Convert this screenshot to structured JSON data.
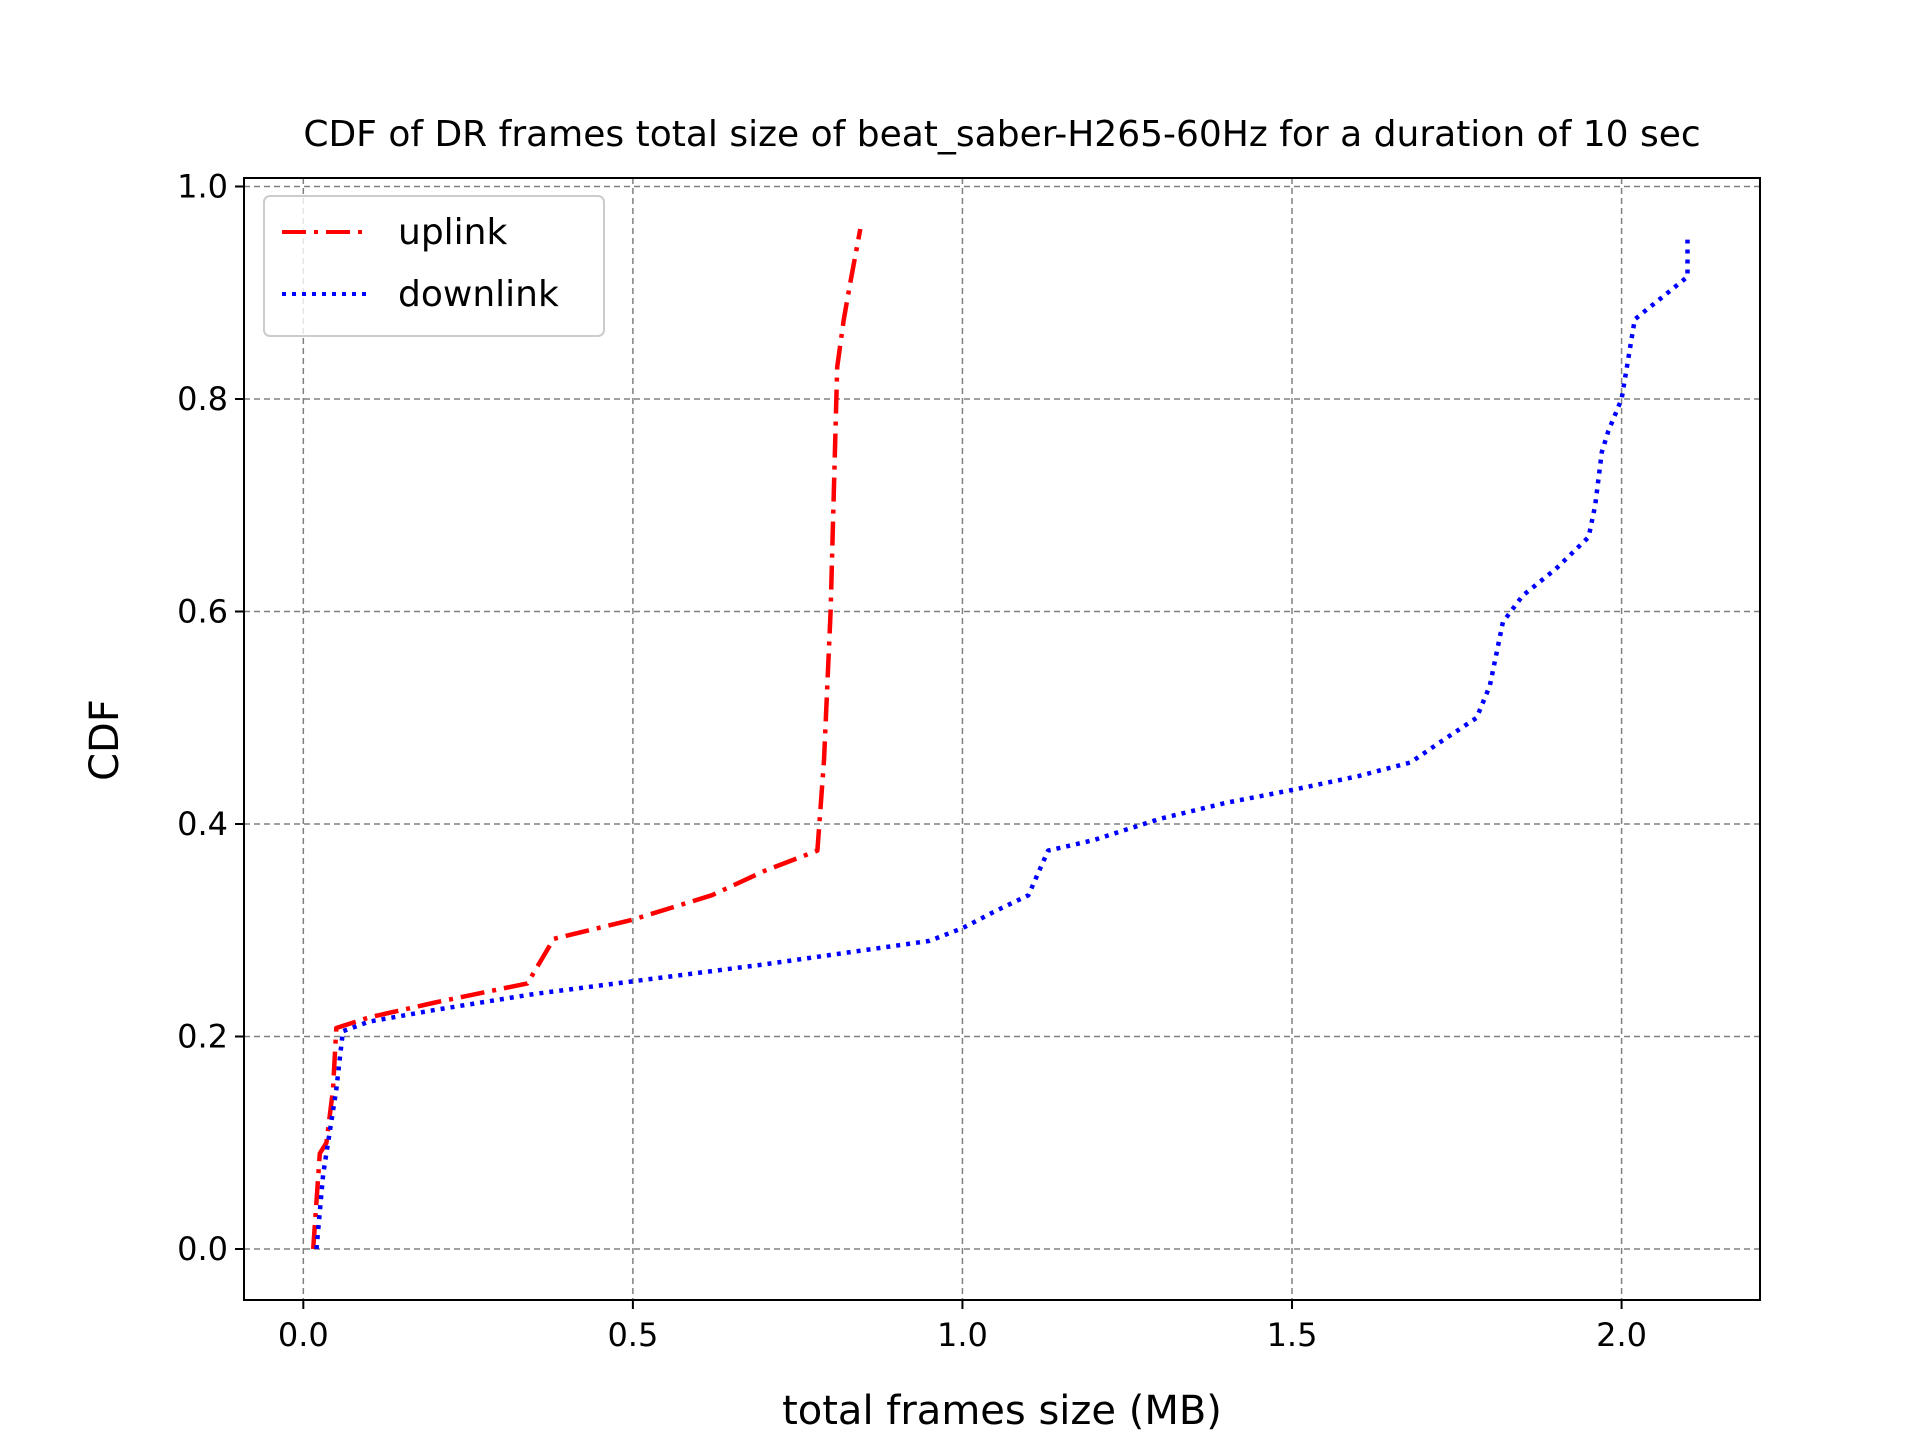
{
  "chart_data": {
    "type": "line",
    "title": "CDF of DR frames total size of beat_saber-H265-60Hz for a duration of 10 sec",
    "xlabel": "total frames size (MB)",
    "ylabel": "CDF",
    "xlim": [
      -0.09,
      2.21
    ],
    "ylim": [
      -0.048,
      1.008
    ],
    "xticks": [
      0.0,
      0.5,
      1.0,
      1.5,
      2.0
    ],
    "xtick_labels": [
      "0.0",
      "0.5",
      "1.0",
      "1.5",
      "2.0"
    ],
    "yticks": [
      0.0,
      0.2,
      0.4,
      0.6,
      0.8,
      1.0
    ],
    "ytick_labels": [
      "0.0",
      "0.2",
      "0.4",
      "0.6",
      "0.8",
      "1.0"
    ],
    "grid": true,
    "legend_position": "top-left",
    "series": [
      {
        "name": "uplink",
        "color": "#ff0000",
        "style": "dashdot",
        "x": [
          0.015,
          0.025,
          0.035,
          0.045,
          0.05,
          0.1,
          0.2,
          0.34,
          0.38,
          0.5,
          0.62,
          0.7,
          0.78,
          0.79,
          0.8,
          0.81,
          0.82,
          0.83,
          0.845
        ],
        "y": [
          0.0,
          0.09,
          0.1,
          0.15,
          0.208,
          0.218,
          0.232,
          0.25,
          0.292,
          0.31,
          0.333,
          0.356,
          0.375,
          0.46,
          0.6,
          0.83,
          0.875,
          0.91,
          0.96
        ]
      },
      {
        "name": "downlink",
        "color": "#0000ff",
        "style": "dotted",
        "x": [
          0.02,
          0.03,
          0.05,
          0.06,
          0.1,
          0.2,
          0.35,
          0.5,
          0.7,
          0.95,
          1.0,
          1.05,
          1.1,
          1.13,
          1.2,
          1.3,
          1.4,
          1.5,
          1.6,
          1.68,
          1.72,
          1.78,
          1.8,
          1.82,
          1.85,
          1.9,
          1.95,
          1.96,
          1.97,
          1.98,
          2.0,
          2.02,
          2.06,
          2.1,
          2.1
        ],
        "y": [
          0.0,
          0.07,
          0.15,
          0.205,
          0.214,
          0.225,
          0.24,
          0.252,
          0.268,
          0.29,
          0.302,
          0.318,
          0.333,
          0.375,
          0.385,
          0.405,
          0.42,
          0.432,
          0.445,
          0.458,
          0.475,
          0.5,
          0.53,
          0.59,
          0.615,
          0.64,
          0.67,
          0.7,
          0.75,
          0.77,
          0.8,
          0.875,
          0.895,
          0.915,
          0.95
        ]
      }
    ]
  }
}
